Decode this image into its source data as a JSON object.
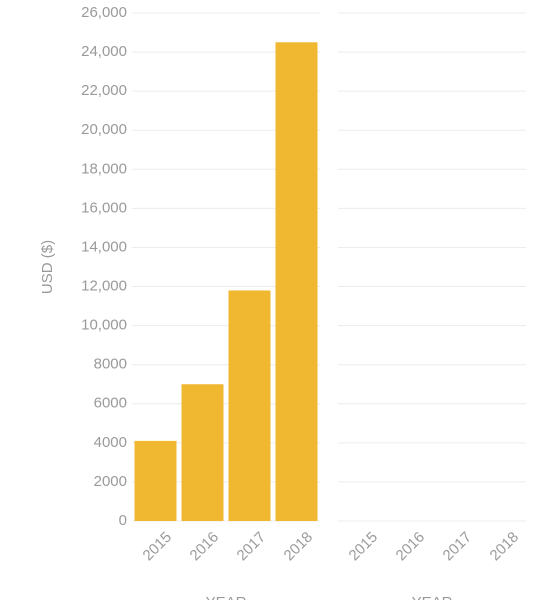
{
  "chart_data": [
    {
      "type": "bar",
      "ylabel": "USD ($)",
      "xlabel": "YEAR",
      "categories": [
        "2015",
        "2016",
        "2017",
        "2018"
      ],
      "values": [
        4100,
        7000,
        11800,
        24500
      ],
      "color": "#f0b731",
      "ylim": [
        0,
        26000
      ],
      "yticks": [
        0,
        2000,
        4000,
        6000,
        8000,
        {
          "value": 10000,
          "label": "10,000"
        },
        {
          "value": 12000,
          "label": "12,000"
        },
        {
          "value": 14000,
          "label": "14,000"
        },
        {
          "value": 16000,
          "label": "16,000"
        },
        {
          "value": 18000,
          "label": "18,000"
        },
        {
          "value": 20000,
          "label": "20,000"
        },
        {
          "value": 22000,
          "label": "22,000"
        },
        {
          "value": 24000,
          "label": "24,000"
        },
        {
          "value": 26000,
          "label": "26,000"
        }
      ],
      "grid": true
    },
    {
      "type": "bar",
      "xlabel": "YEAR",
      "categories": [
        "2015",
        "2016",
        "2017",
        "2018"
      ],
      "ylim": [
        0,
        26000
      ],
      "yticks": [
        0,
        2000,
        4000,
        6000,
        8000,
        10000,
        12000,
        14000,
        16000,
        18000,
        20000,
        22000,
        24000,
        26000
      ],
      "grid": true
    }
  ]
}
